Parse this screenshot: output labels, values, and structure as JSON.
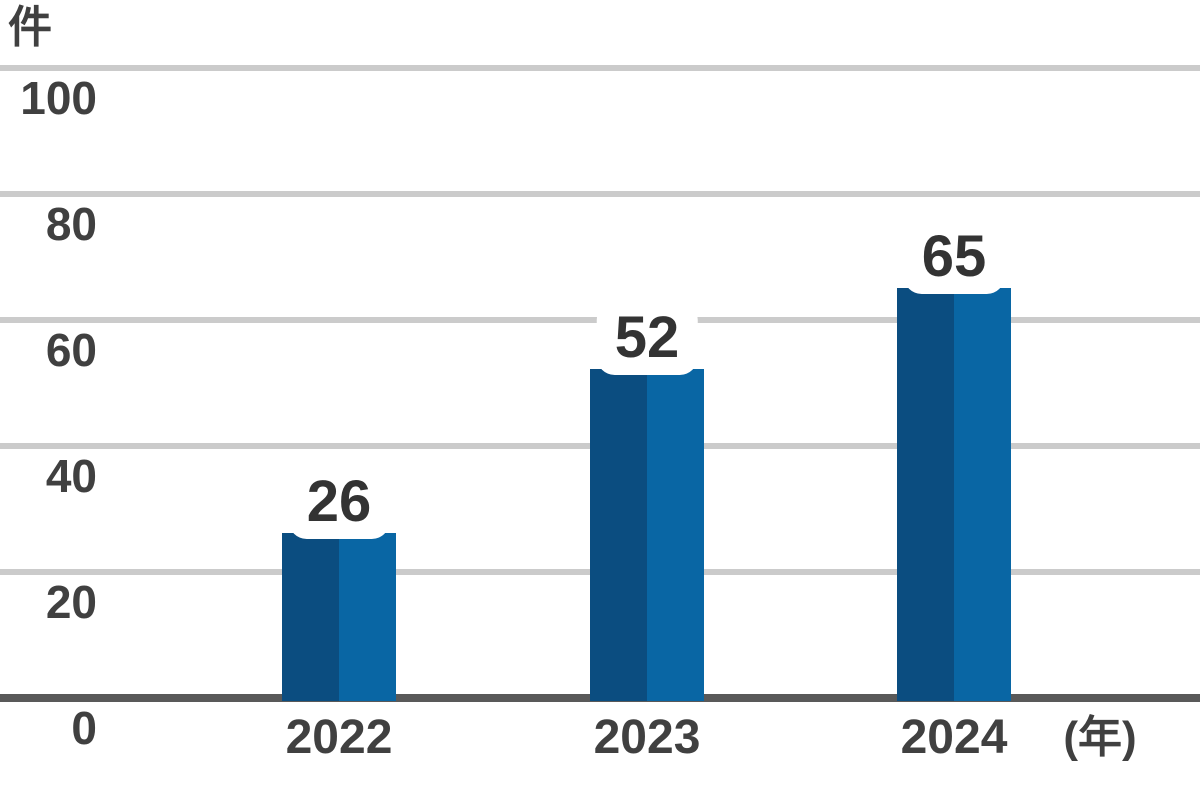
{
  "chart_data": {
    "type": "bar",
    "categories": [
      "2022",
      "2023",
      "2024"
    ],
    "values": [
      26,
      52,
      65
    ],
    "title": "",
    "xlabel": "(年)",
    "ylabel": "件",
    "ylim": [
      0,
      100
    ],
    "yticks": [
      100,
      80,
      60,
      40,
      20,
      0
    ],
    "grid": true,
    "legend": false,
    "value_labels": [
      "26",
      "52",
      "65"
    ],
    "colors": {
      "bar_left": "#0b4d80",
      "bar_right": "#0966a4",
      "gridline": "#cbcbcb",
      "baseline": "#595959",
      "tick_text": "#404040",
      "value_text": "#333333",
      "value_halo": "#ffffff",
      "background": "#ffffff"
    }
  },
  "y_axis": {
    "unit_label": "件",
    "tick_labels": [
      "100",
      "80",
      "60",
      "40",
      "20",
      "0"
    ]
  },
  "x_axis": {
    "unit_label": "(年)",
    "tick_labels": [
      "2022",
      "2023",
      "2024"
    ]
  }
}
